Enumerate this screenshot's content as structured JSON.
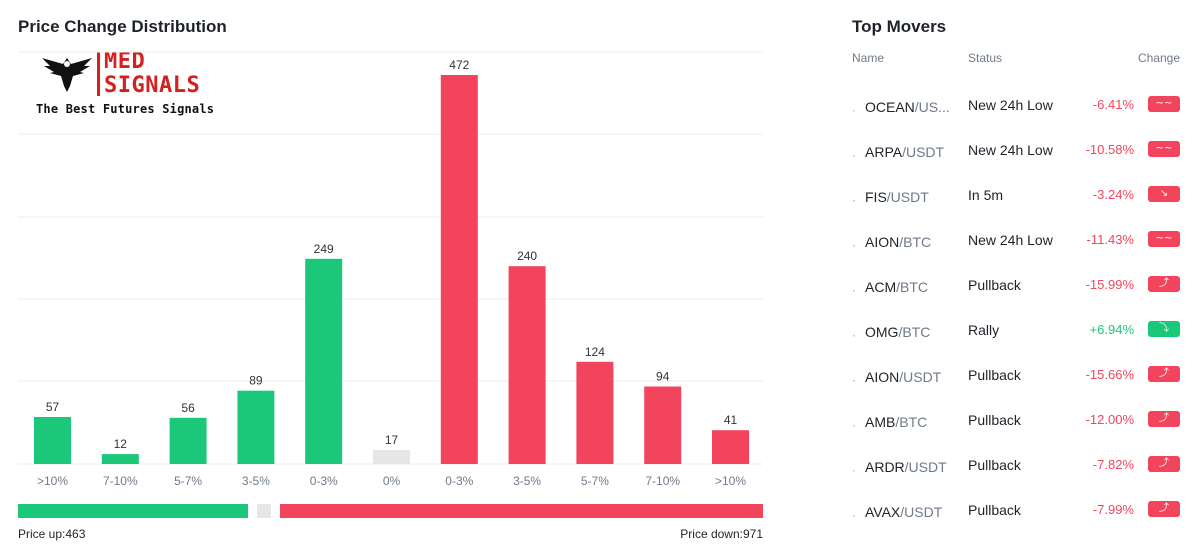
{
  "chart_title": "Price Change Distribution",
  "logo": {
    "word1": "MED",
    "word2": "SIGNALS",
    "tagline": "The Best Futures Signals"
  },
  "colors": {
    "up": "#1bc87a",
    "down": "#f2445c",
    "flat": "#e6e6e6",
    "text": "#1e2329",
    "muted": "#707a8a"
  },
  "chart_data": {
    "type": "bar",
    "categories": [
      ">10%",
      "7-10%",
      "5-7%",
      "3-5%",
      "0-3%",
      "0%",
      "0-3%",
      "3-5%",
      "5-7%",
      "7-10%",
      ">10%"
    ],
    "values": [
      57,
      12,
      56,
      89,
      249,
      17,
      472,
      240,
      124,
      94,
      41
    ],
    "bar_colors": [
      "#1bc87a",
      "#1bc87a",
      "#1bc87a",
      "#1bc87a",
      "#1bc87a",
      "#e6e6e6",
      "#f2445c",
      "#f2445c",
      "#f2445c",
      "#f2445c",
      "#f2445c"
    ],
    "ylim": [
      0,
      472
    ],
    "grid": true
  },
  "summary": {
    "price_up": "Price up:463",
    "price_down": "Price down:971"
  },
  "movers": {
    "title": "Top Movers",
    "headers": {
      "name": "Name",
      "status": "Status",
      "change": "Change"
    },
    "rows": [
      {
        "base": "OCEAN",
        "quote": "/US...",
        "status": "New 24h Low",
        "change": "-6.41%",
        "dir": "down",
        "icon": "wave-down-icon",
        "glyph": "~~"
      },
      {
        "base": "ARPA",
        "quote": "/USDT",
        "status": "New 24h Low",
        "change": "-10.58%",
        "dir": "down",
        "icon": "wave-down-icon",
        "glyph": "~~"
      },
      {
        "base": "FIS",
        "quote": "/USDT",
        "status": "In 5m",
        "change": "-3.24%",
        "dir": "down",
        "icon": "arrow-down-right-icon",
        "glyph": "↘"
      },
      {
        "base": "AION",
        "quote": "/BTC",
        "status": "New 24h Low",
        "change": "-11.43%",
        "dir": "down",
        "icon": "wave-down-icon",
        "glyph": "~~"
      },
      {
        "base": "ACM",
        "quote": "/BTC",
        "status": "Pullback",
        "change": "-15.99%",
        "dir": "down",
        "icon": "pullback-icon",
        "glyph": "⤴"
      },
      {
        "base": "OMG",
        "quote": "/BTC",
        "status": "Rally",
        "change": "+6.94%",
        "dir": "up",
        "icon": "rally-icon",
        "glyph": "⤵"
      },
      {
        "base": "AION",
        "quote": "/USDT",
        "status": "Pullback",
        "change": "-15.66%",
        "dir": "down",
        "icon": "pullback-icon",
        "glyph": "⤴"
      },
      {
        "base": "AMB",
        "quote": "/BTC",
        "status": "Pullback",
        "change": "-12.00%",
        "dir": "down",
        "icon": "pullback-icon",
        "glyph": "⤴"
      },
      {
        "base": "ARDR",
        "quote": "/USDT",
        "status": "Pullback",
        "change": "-7.82%",
        "dir": "down",
        "icon": "pullback-icon",
        "glyph": "⤴"
      },
      {
        "base": "AVAX",
        "quote": "/USDT",
        "status": "Pullback",
        "change": "-7.99%",
        "dir": "down",
        "icon": "pullback-icon",
        "glyph": "⤴"
      }
    ]
  }
}
